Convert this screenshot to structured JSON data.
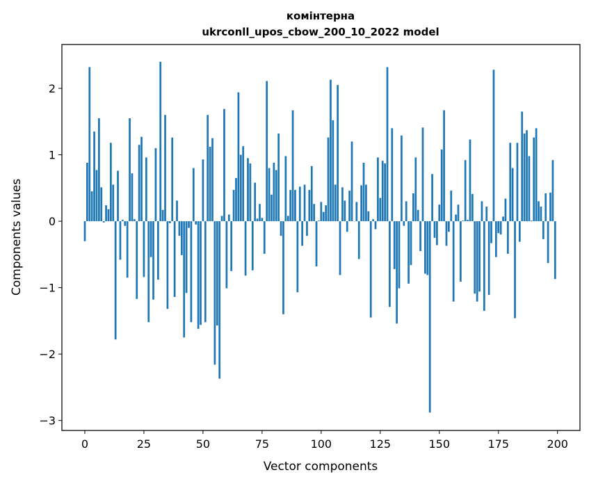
{
  "chart_data": {
    "type": "bar",
    "title": "комінтерна",
    "subtitle": "ukrconll_upos_cbow_200_10_2022 model",
    "xlabel": "Vector components",
    "ylabel": "Components values",
    "xlim": [
      -9.7,
      209.5
    ],
    "ylim": [
      -3.15,
      2.66
    ],
    "xticks": [
      0,
      25,
      50,
      75,
      100,
      125,
      150,
      175,
      200
    ],
    "xtick_labels": [
      "0",
      "25",
      "50",
      "75",
      "100",
      "125",
      "150",
      "175",
      "200"
    ],
    "yticks": [
      -3,
      -2,
      -1,
      0,
      1,
      2
    ],
    "ytick_labels": [
      "−3",
      "−2",
      "−1",
      "0",
      "1",
      "2"
    ],
    "grid": false,
    "bar_color": "#1f77b4",
    "x": [
      0,
      1,
      2,
      3,
      4,
      5,
      6,
      7,
      8,
      9,
      10,
      11,
      12,
      13,
      14,
      15,
      16,
      17,
      18,
      19,
      20,
      21,
      22,
      23,
      24,
      25,
      26,
      27,
      28,
      29,
      30,
      31,
      32,
      33,
      34,
      35,
      36,
      37,
      38,
      39,
      40,
      41,
      42,
      43,
      44,
      45,
      46,
      47,
      48,
      49,
      50,
      51,
      52,
      53,
      54,
      55,
      56,
      57,
      58,
      59,
      60,
      61,
      62,
      63,
      64,
      65,
      66,
      67,
      68,
      69,
      70,
      71,
      72,
      73,
      74,
      75,
      76,
      77,
      78,
      79,
      80,
      81,
      82,
      83,
      84,
      85,
      86,
      87,
      88,
      89,
      90,
      91,
      92,
      93,
      94,
      95,
      96,
      97,
      98,
      99,
      100,
      101,
      102,
      103,
      104,
      105,
      106,
      107,
      108,
      109,
      110,
      111,
      112,
      113,
      114,
      115,
      116,
      117,
      118,
      119,
      120,
      121,
      122,
      123,
      124,
      125,
      126,
      127,
      128,
      129,
      130,
      131,
      132,
      133,
      134,
      135,
      136,
      137,
      138,
      139,
      140,
      141,
      142,
      143,
      144,
      145,
      146,
      147,
      148,
      149,
      150,
      151,
      152,
      153,
      154,
      155,
      156,
      157,
      158,
      159,
      160,
      161,
      162,
      163,
      164,
      165,
      166,
      167,
      168,
      169,
      170,
      171,
      172,
      173,
      174,
      175,
      176,
      177,
      178,
      179,
      180,
      181,
      182,
      183,
      184,
      185,
      186,
      187,
      188,
      189,
      190,
      191,
      192,
      193,
      194,
      195,
      196,
      197,
      198,
      199
    ],
    "values": [
      -0.3,
      0.88,
      2.32,
      0.45,
      1.35,
      0.77,
      1.55,
      0.51,
      -0.02,
      0.24,
      0.18,
      1.18,
      0.55,
      -1.78,
      0.76,
      -0.58,
      0.02,
      -0.07,
      -0.85,
      1.55,
      0.72,
      0.03,
      -1.17,
      1.15,
      1.27,
      -0.84,
      0.96,
      -1.52,
      -0.54,
      -1.18,
      1.1,
      -0.88,
      2.4,
      0.17,
      1.6,
      -1.32,
      -0.03,
      1.26,
      -1.14,
      0.31,
      -0.22,
      -0.51,
      -1.75,
      -1.08,
      -0.1,
      -1.52,
      0.8,
      -0.05,
      -1.62,
      -1.56,
      0.93,
      -1.52,
      1.6,
      1.12,
      1.25,
      -2.16,
      -1.57,
      -2.37,
      0.08,
      1.69,
      -1.01,
      0.1,
      -0.75,
      0.47,
      0.65,
      1.94,
      1.0,
      1.13,
      -0.82,
      0.95,
      0.87,
      -0.74,
      0.58,
      0.04,
      0.26,
      0.05,
      -0.49,
      2.11,
      0.8,
      0.4,
      0.88,
      0.77,
      1.32,
      -0.22,
      -1.4,
      0.98,
      0.08,
      0.47,
      1.67,
      0.47,
      -1.07,
      0.52,
      -0.37,
      0.55,
      -0.22,
      0.47,
      0.83,
      0.26,
      -0.68,
      0.01,
      0.29,
      0.14,
      0.24,
      1.26,
      2.13,
      1.52,
      0.55,
      2.05,
      -0.81,
      0.51,
      0.31,
      -0.16,
      0.46,
      1.2,
      0.0,
      0.29,
      -0.57,
      0.54,
      0.88,
      0.55,
      0.15,
      -1.45,
      0.03,
      -0.12,
      0.96,
      0.35,
      0.91,
      0.87,
      2.32,
      -1.29,
      1.4,
      -0.72,
      -1.54,
      -1.01,
      1.29,
      -0.07,
      0.3,
      -0.94,
      -0.66,
      0.42,
      0.96,
      0.17,
      -0.45,
      1.41,
      -0.79,
      -0.81,
      -2.88,
      0.71,
      -0.25,
      -0.36,
      0.25,
      1.08,
      1.67,
      -0.37,
      -0.16,
      0.46,
      -1.21,
      0.1,
      0.25,
      -0.91,
      0.01,
      0.92,
      0.02,
      1.23,
      0.41,
      -1.09,
      -1.21,
      -1.06,
      0.3,
      -1.35,
      0.22,
      -1.11,
      -0.33,
      2.28,
      -0.54,
      -0.18,
      -0.2,
      0.07,
      0.34,
      -0.49,
      1.18,
      0.8,
      -1.46,
      1.18,
      -0.31,
      1.65,
      1.32,
      1.37,
      0.98,
      0.01,
      1.26,
      1.4,
      0.3,
      0.22,
      -0.27,
      0.42,
      -0.63,
      0.43,
      0.92,
      -0.87
    ]
  }
}
